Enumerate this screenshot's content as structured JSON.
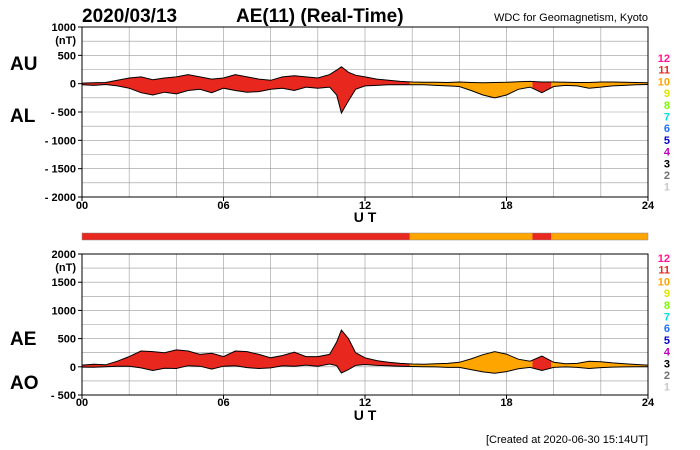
{
  "header": {
    "date": "2020/03/13",
    "title": "AE(11) (Real-Time)",
    "source": "WDC for Geomagnetism, Kyoto"
  },
  "footer": {
    "created": "[Created at 2020-06-30 15:14UT]"
  },
  "station_legend": {
    "labels": [
      "12",
      "11",
      "10",
      "9",
      "8",
      "7",
      "6",
      "5",
      "4",
      "3",
      "2",
      "1"
    ],
    "colors": [
      "#ff1493",
      "#e8281e",
      "#ffa500",
      "#e0e000",
      "#7cfc00",
      "#00e0e0",
      "#1e6fff",
      "#0000c8",
      "#c000c0",
      "#000000",
      "#707070",
      "#c8c8c8"
    ]
  },
  "station_bar": {
    "segments": [
      {
        "from": 0,
        "to": 13.9,
        "station": "11"
      },
      {
        "from": 13.9,
        "to": 19.1,
        "station": "10"
      },
      {
        "from": 19.1,
        "to": 19.9,
        "station": "11"
      },
      {
        "from": 19.9,
        "to": 24,
        "station": "10"
      }
    ]
  },
  "chart_data": [
    {
      "type": "area",
      "name": "au-al",
      "ylabel": "(nT)",
      "side_labels": [
        "AU",
        "AL"
      ],
      "ylim": [
        -2000,
        1000
      ],
      "yticks": [
        1000,
        500,
        0,
        -500,
        -1000,
        -1500,
        -2000
      ],
      "ytick_labels": [
        "1000",
        "500",
        "0",
        "- 500",
        "- 1000",
        "- 1500",
        "- 2000"
      ],
      "xlim": [
        0,
        24
      ],
      "xticks": [
        0,
        6,
        12,
        18,
        24
      ],
      "xtick_labels": [
        "00",
        "06",
        "12",
        "18",
        "24"
      ],
      "xlabel": "U T",
      "grid": true,
      "hours": [
        0,
        0.5,
        1,
        1.5,
        2,
        2.5,
        3,
        3.5,
        4,
        4.5,
        5,
        5.5,
        6,
        6.5,
        7,
        7.5,
        8,
        8.5,
        9,
        9.5,
        10,
        10.5,
        10.8,
        11,
        11.3,
        11.6,
        12,
        12.5,
        13,
        13.5,
        14,
        14.5,
        15,
        15.5,
        16,
        16.5,
        17,
        17.5,
        18,
        18.5,
        19,
        19.5,
        20,
        20.5,
        21,
        21.5,
        22,
        22.5,
        23,
        23.5,
        24
      ],
      "upper": [
        10,
        15,
        20,
        60,
        100,
        120,
        70,
        100,
        120,
        160,
        120,
        80,
        100,
        160,
        120,
        80,
        60,
        120,
        140,
        120,
        100,
        160,
        240,
        300,
        200,
        150,
        120,
        80,
        60,
        40,
        30,
        25,
        25,
        20,
        30,
        20,
        15,
        20,
        25,
        35,
        40,
        30,
        30,
        25,
        20,
        20,
        30,
        30,
        25,
        20,
        15
      ],
      "lower": [
        -20,
        -30,
        -15,
        -40,
        -80,
        -160,
        -200,
        -150,
        -180,
        -120,
        -100,
        -160,
        -80,
        -120,
        -150,
        -140,
        -100,
        -80,
        -120,
        -60,
        -80,
        -60,
        -200,
        -520,
        -300,
        -100,
        -40,
        -30,
        -20,
        -20,
        -20,
        -20,
        -30,
        -40,
        -50,
        -120,
        -200,
        -250,
        -200,
        -100,
        -60,
        -160,
        -50,
        -30,
        -40,
        -80,
        -60,
        -40,
        -30,
        -20,
        -15
      ],
      "color_segments": [
        {
          "from": 0,
          "to": 13.9,
          "station": "11"
        },
        {
          "from": 13.9,
          "to": 19.1,
          "station": "10"
        },
        {
          "from": 19.1,
          "to": 19.9,
          "station": "11"
        },
        {
          "from": 19.9,
          "to": 24,
          "station": "10"
        }
      ]
    },
    {
      "type": "area",
      "name": "ae-ao",
      "ylabel": "(nT)",
      "side_labels": [
        "AE",
        "AO"
      ],
      "ylim": [
        -500,
        2000
      ],
      "yticks": [
        2000,
        1500,
        1000,
        500,
        0,
        -500
      ],
      "ytick_labels": [
        "2000",
        "1500",
        "1000",
        "500",
        "0",
        "- 500"
      ],
      "xlim": [
        0,
        24
      ],
      "xticks": [
        0,
        6,
        12,
        18,
        24
      ],
      "xtick_labels": [
        "00",
        "06",
        "12",
        "18",
        "24"
      ],
      "xlabel": "U T",
      "grid": true,
      "hours": [
        0,
        0.5,
        1,
        1.5,
        2,
        2.5,
        3,
        3.5,
        4,
        4.5,
        5,
        5.5,
        6,
        6.5,
        7,
        7.5,
        8,
        8.5,
        9,
        9.5,
        10,
        10.5,
        10.8,
        11,
        11.3,
        11.6,
        12,
        12.5,
        13,
        13.5,
        14,
        14.5,
        15,
        15.5,
        16,
        16.5,
        17,
        17.5,
        18,
        18.5,
        19,
        19.5,
        20,
        20.5,
        21,
        21.5,
        22,
        22.5,
        23,
        23.5,
        24
      ],
      "upper": [
        30,
        45,
        35,
        100,
        180,
        280,
        270,
        250,
        300,
        280,
        220,
        240,
        180,
        280,
        270,
        220,
        160,
        200,
        260,
        180,
        180,
        220,
        440,
        650,
        500,
        250,
        160,
        110,
        80,
        60,
        50,
        45,
        55,
        60,
        80,
        140,
        215,
        270,
        225,
        135,
        100,
        190,
        80,
        55,
        60,
        100,
        90,
        70,
        55,
        40,
        30
      ],
      "lower": [
        -5,
        -8,
        2,
        10,
        10,
        -20,
        -65,
        -25,
        -30,
        20,
        10,
        -40,
        10,
        20,
        -15,
        -30,
        -20,
        20,
        10,
        30,
        10,
        50,
        20,
        -110,
        -50,
        25,
        40,
        25,
        20,
        10,
        5,
        2,
        -2,
        -10,
        -10,
        -50,
        -90,
        -115,
        -85,
        -35,
        -10,
        -65,
        -10,
        -2,
        -10,
        -30,
        -15,
        -5,
        -2,
        0,
        0
      ],
      "color_segments": [
        {
          "from": 0,
          "to": 13.9,
          "station": "11"
        },
        {
          "from": 13.9,
          "to": 19.1,
          "station": "10"
        },
        {
          "from": 19.1,
          "to": 19.9,
          "station": "11"
        },
        {
          "from": 19.9,
          "to": 24,
          "station": "10"
        }
      ]
    }
  ]
}
